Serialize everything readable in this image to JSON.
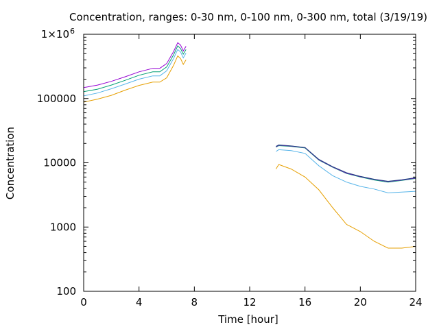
{
  "chart_data": {
    "type": "line",
    "title": "Concentration, ranges: 0-30 nm, 0-100 nm, 0-300 nm, total (3/19/19)",
    "xlabel": "Time [hour]",
    "ylabel": "Concentration",
    "xlim": [
      0,
      24
    ],
    "ylim": [
      100,
      1000000
    ],
    "yscale": "log",
    "grid": false,
    "xticks": [
      0,
      4,
      8,
      12,
      16,
      20,
      24
    ],
    "xtick_labels": [
      "0",
      "4",
      "8",
      "12",
      "16",
      "20",
      "24"
    ],
    "yticks": [
      100,
      1000,
      10000,
      100000,
      1000000
    ],
    "ytick_labels": [
      "100",
      "1000",
      "10000",
      "100000",
      "1×10"
    ],
    "ytick_top_exponent": "6",
    "series": [
      {
        "color": "#e69f00",
        "segments": [
          {
            "x": [
              0,
              1,
              2,
              3,
              4,
              5,
              5.5,
              6,
              6.5,
              6.8,
              7,
              7.2,
              7.4
            ],
            "y": [
              88000,
              98000,
              112000,
              135000,
              160000,
              180000,
              180000,
              210000,
              330000,
              460000,
              420000,
              340000,
              400000
            ]
          },
          {
            "x": [
              13.9,
              14.1,
              15,
              16,
              17,
              18,
              19,
              20,
              21,
              22,
              23,
              24
            ],
            "y": [
              8000,
              9400,
              8000,
              6000,
              3800,
              2000,
              1100,
              850,
              600,
              470,
              470,
              500
            ]
          }
        ]
      },
      {
        "color": "#56b4e9",
        "segments": [
          {
            "x": [
              0,
              1,
              2,
              3,
              4,
              5,
              5.5,
              6,
              6.5,
              6.8,
              7,
              7.2,
              7.4
            ],
            "y": [
              110000,
              122000,
              142000,
              168000,
              200000,
              225000,
              225000,
              270000,
              420000,
              580000,
              530000,
              430000,
              510000
            ]
          },
          {
            "x": [
              13.9,
              14.1,
              15,
              16,
              17,
              18,
              19,
              20,
              21,
              22,
              23,
              24
            ],
            "y": [
              15000,
              16000,
              15500,
              14000,
              9000,
              6300,
              5000,
              4300,
              3900,
              3400,
              3500,
              3600
            ]
          }
        ]
      },
      {
        "color": "#009e73",
        "segments": [
          {
            "x": [
              0,
              1,
              2,
              3,
              4,
              5,
              5.5,
              6,
              6.5,
              6.8,
              7,
              7.2,
              7.4
            ],
            "y": [
              128000,
              140000,
              162000,
              192000,
              230000,
              260000,
              260000,
              310000,
              480000,
              660000,
              600000,
              490000,
              580000
            ]
          },
          {
            "x": [
              13.9,
              14.1,
              15,
              16,
              17,
              18,
              19,
              20,
              21,
              22,
              23,
              24
            ],
            "y": [
              17500,
              18500,
              18000,
              17000,
              11000,
              8500,
              6800,
              6000,
              5400,
              5000,
              5300,
              5700
            ]
          }
        ]
      },
      {
        "color": "#9400d3",
        "segments": [
          {
            "x": [
              0,
              1,
              2,
              3,
              4,
              5,
              5.5,
              6,
              6.5,
              6.8,
              7,
              7.2,
              7.4
            ],
            "y": [
              148000,
              162000,
              185000,
              218000,
              260000,
              295000,
              295000,
              350000,
              540000,
              740000,
              680000,
              550000,
              650000
            ]
          },
          {
            "x": [
              13.9,
              14.1,
              15,
              16,
              17,
              18,
              19,
              20,
              21,
              22,
              23,
              24
            ],
            "y": [
              17800,
              18800,
              18200,
              17200,
              11200,
              8600,
              6900,
              6100,
              5500,
              5100,
              5400,
              5800
            ]
          }
        ]
      },
      {
        "color": "#1f3f7f",
        "segments": [
          {
            "x": [
              13.9,
              14.1,
              15,
              16,
              17,
              18,
              19,
              20,
              21,
              22,
              23,
              24
            ],
            "y": [
              18000,
              19000,
              18300,
              17300,
              11300,
              8700,
              7000,
              6150,
              5550,
              5150,
              5450,
              5850
            ]
          }
        ]
      }
    ]
  }
}
